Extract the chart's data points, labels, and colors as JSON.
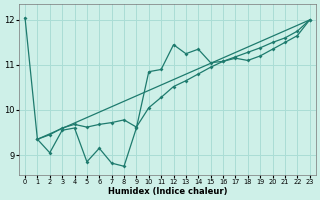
{
  "xlabel": "Humidex (Indice chaleur)",
  "bg_color": "#cef0e8",
  "line_color": "#1e7b6e",
  "grid_color": "#aaddd5",
  "xlim": [
    -0.5,
    23.5
  ],
  "ylim": [
    8.55,
    12.35
  ],
  "xticks": [
    0,
    1,
    2,
    3,
    4,
    5,
    6,
    7,
    8,
    9,
    10,
    11,
    12,
    13,
    14,
    15,
    16,
    17,
    18,
    19,
    20,
    21,
    22,
    23
  ],
  "yticks": [
    9,
    10,
    11,
    12
  ],
  "curve1_x": [
    0,
    1,
    2,
    3,
    4,
    5,
    6,
    7,
    8,
    9,
    10,
    11,
    12,
    13,
    14,
    15,
    16,
    17,
    18,
    19,
    20,
    21,
    22,
    23
  ],
  "curve1_y": [
    12.05,
    9.35,
    9.05,
    9.55,
    9.6,
    8.85,
    9.15,
    8.82,
    8.75,
    9.6,
    10.85,
    10.9,
    11.45,
    11.25,
    11.35,
    11.05,
    11.08,
    11.15,
    11.1,
    11.2,
    11.35,
    11.5,
    11.65,
    12.0
  ],
  "curve2_x": [
    1,
    2,
    3,
    4,
    5,
    6,
    7,
    8,
    9,
    10,
    11,
    12,
    13,
    14,
    15,
    16,
    17,
    18,
    19,
    20,
    21,
    22,
    23
  ],
  "curve2_y": [
    9.35,
    9.45,
    9.6,
    9.68,
    9.62,
    9.68,
    9.72,
    9.78,
    9.62,
    10.05,
    10.28,
    10.52,
    10.65,
    10.8,
    10.95,
    11.08,
    11.18,
    11.28,
    11.38,
    11.5,
    11.6,
    11.75,
    12.0
  ],
  "curve3_x": [
    1,
    23
  ],
  "curve3_y": [
    9.35,
    12.0
  ]
}
